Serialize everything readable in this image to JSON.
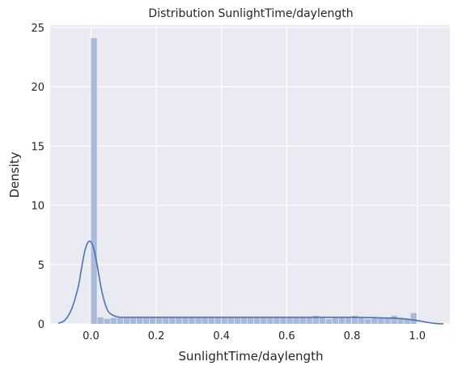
{
  "chart_data": {
    "type": "histogram",
    "title": "Distribution SunlightTime/daylength",
    "xlabel": "SunlightTime/daylength",
    "ylabel": "Density",
    "xlim": [
      -0.125,
      1.1
    ],
    "ylim": [
      0,
      25.2
    ],
    "xticks": [
      0.0,
      0.2,
      0.4,
      0.6,
      0.8,
      1.0
    ],
    "xtick_labels": [
      "0.0",
      "0.2",
      "0.4",
      "0.6",
      "0.8",
      "1.0"
    ],
    "yticks": [
      0,
      5,
      10,
      15,
      20,
      25
    ],
    "ytick_labels": [
      "0",
      "5",
      "10",
      "15",
      "20",
      "25"
    ],
    "grid": true,
    "bin_width": 0.02,
    "bins_start": 0.0,
    "bar_values": [
      24.1,
      0.55,
      0.42,
      0.5,
      0.5,
      0.5,
      0.5,
      0.5,
      0.5,
      0.5,
      0.5,
      0.5,
      0.5,
      0.5,
      0.5,
      0.5,
      0.5,
      0.5,
      0.5,
      0.5,
      0.5,
      0.5,
      0.5,
      0.5,
      0.5,
      0.5,
      0.5,
      0.5,
      0.5,
      0.5,
      0.5,
      0.5,
      0.5,
      0.5,
      0.68,
      0.5,
      0.4,
      0.5,
      0.5,
      0.5,
      0.68,
      0.5,
      0.4,
      0.5,
      0.5,
      0.5,
      0.68,
      0.5,
      0.45,
      0.9
    ],
    "kde": {
      "x": [
        -0.1,
        -0.08,
        -0.06,
        -0.04,
        -0.03,
        -0.02,
        -0.01,
        0.0,
        0.01,
        0.02,
        0.03,
        0.04,
        0.05,
        0.06,
        0.08,
        0.1,
        0.15,
        0.2,
        0.4,
        0.6,
        0.8,
        0.9,
        0.95,
        0.98,
        1.0,
        1.02,
        1.05,
        1.08
      ],
      "y": [
        0.05,
        0.3,
        1.2,
        3.0,
        4.5,
        6.0,
        6.85,
        6.9,
        6.2,
        4.8,
        3.2,
        2.0,
        1.2,
        0.85,
        0.6,
        0.55,
        0.55,
        0.55,
        0.55,
        0.55,
        0.55,
        0.5,
        0.45,
        0.35,
        0.28,
        0.18,
        0.05,
        0.0
      ]
    },
    "colors": {
      "bar": "#a8b9d9",
      "kde": "#4c72b0",
      "background": "#eaeaf2",
      "grid": "#ffffff"
    }
  }
}
